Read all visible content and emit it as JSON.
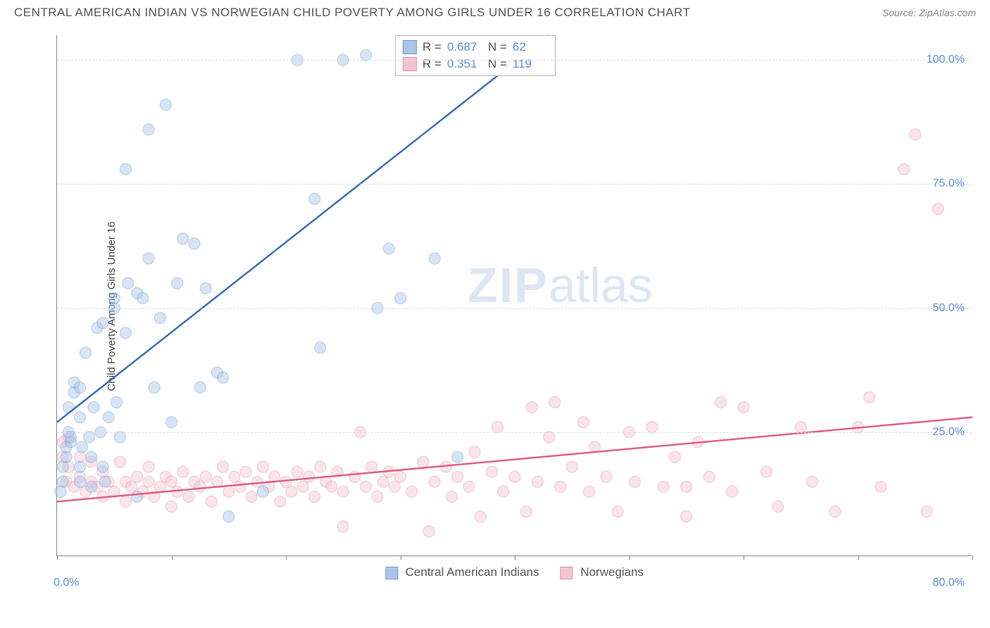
{
  "title": "CENTRAL AMERICAN INDIAN VS NORWEGIAN CHILD POVERTY AMONG GIRLS UNDER 16 CORRELATION CHART",
  "source": "Source: ZipAtlas.com",
  "ylabel": "Child Poverty Among Girls Under 16",
  "watermark_zip": "ZIP",
  "watermark_atlas": "atlas",
  "chart": {
    "type": "scatter",
    "xlim": [
      0,
      80
    ],
    "ylim": [
      0,
      105
    ],
    "x_ticks": [
      0,
      10,
      20,
      30,
      40,
      50,
      60,
      70,
      80
    ],
    "x_tick_labels": {
      "0": "0.0%",
      "80": "80.0%"
    },
    "y_gridlines": [
      25,
      50,
      75,
      100
    ],
    "y_tick_labels": {
      "25": "25.0%",
      "50": "50.0%",
      "75": "75.0%",
      "100": "100.0%"
    },
    "grid_color": "#dddddd",
    "axis_color": "#888888",
    "label_color": "#5b8fd6",
    "marker_radius": 8,
    "marker_opacity": 0.45,
    "series": [
      {
        "name": "Central American Indians",
        "color_fill": "#a8c5e8",
        "color_stroke": "#6b9bd1",
        "line_color": "#3b6fb5",
        "R": "0.687",
        "N": "62",
        "trend": {
          "x1": 0,
          "y1": 27,
          "x2": 43,
          "y2": 105
        },
        "points": [
          [
            0.5,
            15
          ],
          [
            0.5,
            18
          ],
          [
            0.8,
            20
          ],
          [
            0.8,
            22
          ],
          [
            1,
            25
          ],
          [
            1,
            30
          ],
          [
            1.2,
            23
          ],
          [
            1.2,
            24
          ],
          [
            1.5,
            33
          ],
          [
            1.5,
            35
          ],
          [
            2,
            15
          ],
          [
            2,
            18
          ],
          [
            2,
            28
          ],
          [
            2,
            34
          ],
          [
            2.2,
            22
          ],
          [
            2.5,
            41
          ],
          [
            2.8,
            24
          ],
          [
            3,
            14
          ],
          [
            3,
            20
          ],
          [
            3.2,
            30
          ],
          [
            3.5,
            46
          ],
          [
            3.8,
            25
          ],
          [
            4,
            18
          ],
          [
            4,
            47
          ],
          [
            4.2,
            15
          ],
          [
            4.5,
            28
          ],
          [
            5,
            50
          ],
          [
            5,
            52
          ],
          [
            5.2,
            31
          ],
          [
            5.5,
            24
          ],
          [
            6,
            45
          ],
          [
            6,
            78
          ],
          [
            6.2,
            55
          ],
          [
            7,
            12
          ],
          [
            7,
            53
          ],
          [
            7.5,
            52
          ],
          [
            8,
            60
          ],
          [
            8,
            86
          ],
          [
            8.5,
            34
          ],
          [
            9,
            48
          ],
          [
            9.5,
            91
          ],
          [
            10,
            27
          ],
          [
            10.5,
            55
          ],
          [
            11,
            64
          ],
          [
            12,
            63
          ],
          [
            12.5,
            34
          ],
          [
            13,
            54
          ],
          [
            14,
            37
          ],
          [
            14.5,
            36
          ],
          [
            15,
            8
          ],
          [
            18,
            13
          ],
          [
            21,
            100
          ],
          [
            22.5,
            72
          ],
          [
            23,
            42
          ],
          [
            25,
            100
          ],
          [
            27,
            101
          ],
          [
            28,
            50
          ],
          [
            29,
            62
          ],
          [
            30,
            52
          ],
          [
            33,
            60
          ],
          [
            35,
            20
          ],
          [
            0.3,
            13
          ]
        ]
      },
      {
        "name": "Norwegians",
        "color_fill": "#f5c4d1",
        "color_stroke": "#e090a8",
        "line_color": "#e06088",
        "R": "0.351",
        "N": "119",
        "trend": {
          "x1": 0,
          "y1": 11,
          "x2": 80,
          "y2": 28
        },
        "points": [
          [
            0.5,
            20
          ],
          [
            0.5,
            23
          ],
          [
            0.8,
            15
          ],
          [
            1,
            24
          ],
          [
            1,
            18
          ],
          [
            1.5,
            14
          ],
          [
            2,
            16
          ],
          [
            2,
            20
          ],
          [
            2.5,
            13
          ],
          [
            3,
            19
          ],
          [
            3,
            15
          ],
          [
            3.5,
            14
          ],
          [
            4,
            17
          ],
          [
            4,
            12
          ],
          [
            4.5,
            15
          ],
          [
            5,
            13
          ],
          [
            5.5,
            19
          ],
          [
            6,
            15
          ],
          [
            6,
            11
          ],
          [
            6.5,
            14
          ],
          [
            7,
            16
          ],
          [
            7.5,
            13
          ],
          [
            8,
            15
          ],
          [
            8,
            18
          ],
          [
            8.5,
            12
          ],
          [
            9,
            14
          ],
          [
            9.5,
            16
          ],
          [
            10,
            10
          ],
          [
            10,
            15
          ],
          [
            10.5,
            13
          ],
          [
            11,
            17
          ],
          [
            11.5,
            12
          ],
          [
            12,
            15
          ],
          [
            12.5,
            14
          ],
          [
            13,
            16
          ],
          [
            13.5,
            11
          ],
          [
            14,
            15
          ],
          [
            14.5,
            18
          ],
          [
            15,
            13
          ],
          [
            15.5,
            16
          ],
          [
            16,
            14
          ],
          [
            16.5,
            17
          ],
          [
            17,
            12
          ],
          [
            17.5,
            15
          ],
          [
            18,
            18
          ],
          [
            18.5,
            14
          ],
          [
            19,
            16
          ],
          [
            19.5,
            11
          ],
          [
            20,
            15
          ],
          [
            20.5,
            13
          ],
          [
            21,
            17
          ],
          [
            21.5,
            14
          ],
          [
            22,
            16
          ],
          [
            22.5,
            12
          ],
          [
            23,
            18
          ],
          [
            23.5,
            15
          ],
          [
            24,
            14
          ],
          [
            24.5,
            17
          ],
          [
            25,
            6
          ],
          [
            25,
            13
          ],
          [
            26,
            16
          ],
          [
            26.5,
            25
          ],
          [
            27,
            14
          ],
          [
            27.5,
            18
          ],
          [
            28,
            12
          ],
          [
            28.5,
            15
          ],
          [
            29,
            17
          ],
          [
            29.5,
            14
          ],
          [
            30,
            16
          ],
          [
            31,
            13
          ],
          [
            32,
            19
          ],
          [
            32.5,
            5
          ],
          [
            33,
            15
          ],
          [
            34,
            18
          ],
          [
            34.5,
            12
          ],
          [
            35,
            16
          ],
          [
            36,
            14
          ],
          [
            36.5,
            21
          ],
          [
            37,
            8
          ],
          [
            38,
            17
          ],
          [
            38.5,
            26
          ],
          [
            39,
            13
          ],
          [
            40,
            16
          ],
          [
            41,
            9
          ],
          [
            41.5,
            30
          ],
          [
            42,
            15
          ],
          [
            43,
            24
          ],
          [
            43.5,
            31
          ],
          [
            44,
            14
          ],
          [
            45,
            18
          ],
          [
            46,
            27
          ],
          [
            46.5,
            13
          ],
          [
            47,
            22
          ],
          [
            48,
            16
          ],
          [
            49,
            9
          ],
          [
            50,
            25
          ],
          [
            50.5,
            15
          ],
          [
            52,
            26
          ],
          [
            53,
            14
          ],
          [
            54,
            20
          ],
          [
            55,
            8
          ],
          [
            56,
            23
          ],
          [
            57,
            16
          ],
          [
            58,
            31
          ],
          [
            59,
            13
          ],
          [
            60,
            30
          ],
          [
            62,
            17
          ],
          [
            63,
            10
          ],
          [
            65,
            26
          ],
          [
            66,
            15
          ],
          [
            68,
            9
          ],
          [
            70,
            26
          ],
          [
            71,
            32
          ],
          [
            72,
            14
          ],
          [
            74,
            78
          ],
          [
            75,
            85
          ],
          [
            76,
            9
          ],
          [
            77,
            70
          ],
          [
            55,
            14
          ]
        ]
      }
    ]
  },
  "legend": {
    "series1_label": "Central American Indians",
    "series2_label": "Norwegians"
  },
  "stats_labels": {
    "R": "R =",
    "N": "N ="
  }
}
